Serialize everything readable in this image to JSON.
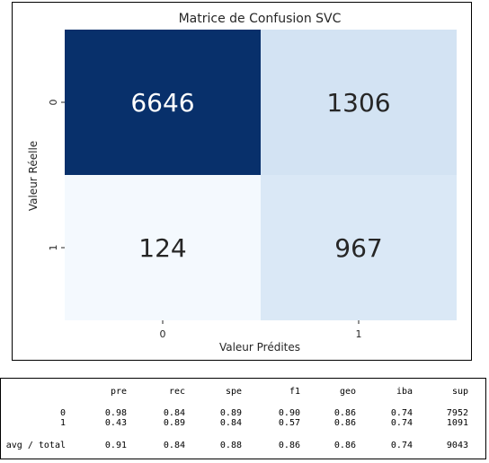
{
  "chart_data": {
    "type": "heatmap",
    "title": "Matrice de Confusion SVC",
    "xlabel": "Valeur Prédites",
    "ylabel": "Valeur Réelle",
    "x_categories": [
      "0",
      "1"
    ],
    "y_categories": [
      "0",
      "1"
    ],
    "matrix": [
      [
        6646,
        1306
      ],
      [
        124,
        967
      ]
    ],
    "colormap": "Blues",
    "cell_colors": [
      [
        "#08306b",
        "#d3e3f3"
      ],
      [
        "#f4f9fe",
        "#dae8f6"
      ]
    ],
    "text_colors": [
      [
        "#ffffff",
        "#262626"
      ],
      [
        "#262626",
        "#262626"
      ]
    ]
  },
  "report": {
    "headers": [
      "pre",
      "rec",
      "spe",
      "f1",
      "geo",
      "iba",
      "sup"
    ],
    "rows": [
      {
        "label": "0",
        "values": [
          "0.98",
          "0.84",
          "0.89",
          "0.90",
          "0.86",
          "0.74",
          "7952"
        ]
      },
      {
        "label": "1",
        "values": [
          "0.43",
          "0.89",
          "0.84",
          "0.57",
          "0.86",
          "0.74",
          "1091"
        ]
      },
      {
        "label": "avg / total",
        "values": [
          "0.91",
          "0.84",
          "0.88",
          "0.86",
          "0.86",
          "0.74",
          "9043"
        ]
      }
    ]
  }
}
